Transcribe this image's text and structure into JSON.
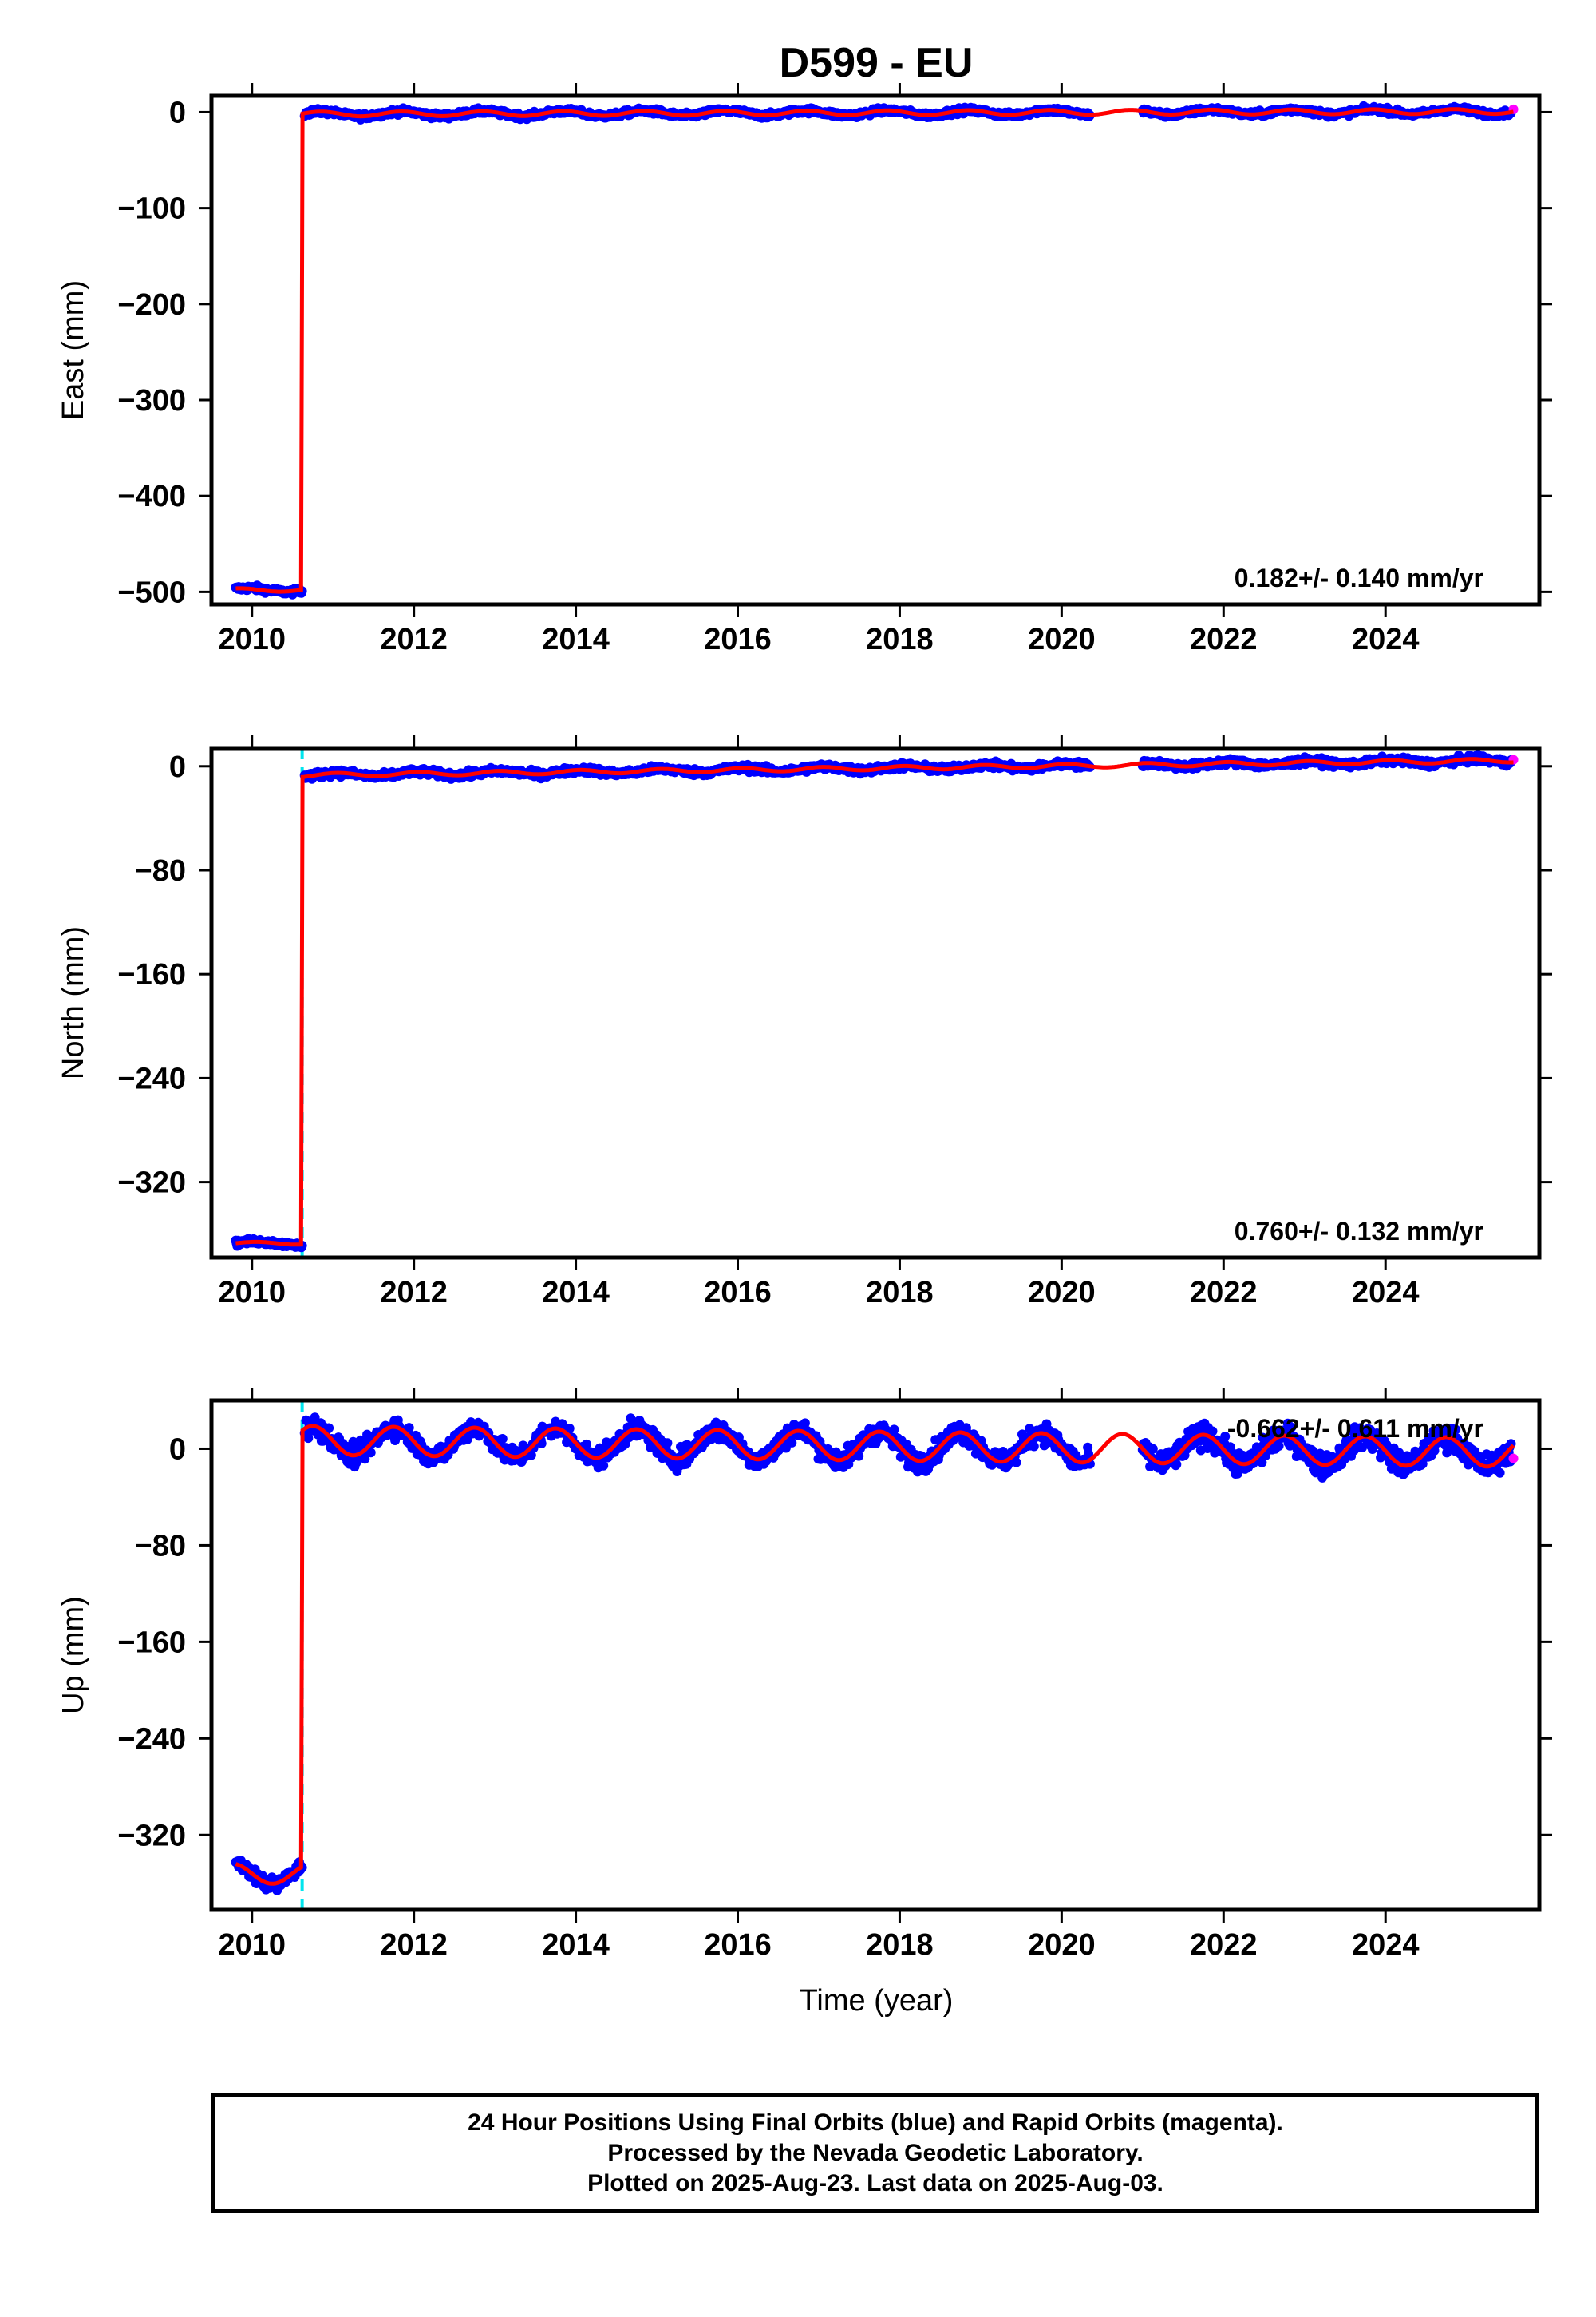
{
  "title": "D599 - EU",
  "xlabel": "Time (year)",
  "colors": {
    "final_orbits": "#0000ff",
    "rapid_orbits": "#ff00ff",
    "model": "#ff0000",
    "offset_marker": "#00e5ee",
    "axes": "#000000"
  },
  "footer": {
    "line1": "24 Hour Positions Using Final Orbits (blue) and Rapid Orbits (magenta).",
    "line2": "Processed by the Nevada Geodetic Laboratory.",
    "line3": "Plotted on 2025-Aug-23. Last data on 2025-Aug-03."
  },
  "chart_data": [
    {
      "type": "scatter",
      "ylabel": "East (mm)",
      "rate_label": "0.182+/- 0.140 mm/yr",
      "rate_position": "bottom-right",
      "xlim": [
        2009.5,
        2025.9
      ],
      "ylim": [
        -513,
        17
      ],
      "xticks": [
        "2010",
        "2012",
        "2014",
        "2016",
        "2018",
        "2020",
        "2022",
        "2024"
      ],
      "yticks": [
        0,
        -100,
        -200,
        -300,
        -400,
        -500
      ],
      "ytick_labels": [
        "0",
        "−100",
        "−200",
        "−300",
        "−400",
        "−500"
      ],
      "offset_epoch": null,
      "data_gap": [
        2020.35,
        2021.0
      ],
      "series": [
        {
          "name": "Final Orbits (blue)",
          "segments": [
            {
              "x_start": 2009.8,
              "x_end": 2010.62,
              "base": -498,
              "slope": 0,
              "annual": 2,
              "phase": 0.3,
              "noise": 2
            },
            {
              "x_start": 2010.65,
              "x_end": 2020.35,
              "base": -2,
              "slope": 0.182,
              "annual": 2.5,
              "phase": 0.4,
              "noise": 2
            },
            {
              "x_start": 2021.0,
              "x_end": 2025.55,
              "base": -2,
              "slope": 0.182,
              "annual": 2.5,
              "phase": 0.4,
              "noise": 2
            }
          ]
        },
        {
          "name": "Rapid Orbits (magenta)",
          "points": [
            [
              2025.58,
              3
            ]
          ]
        }
      ],
      "model": {
        "pre": -498,
        "post": -2,
        "slope": 0.182,
        "annual": 2.5,
        "phase": 0.4,
        "jump_epoch": 2010.62
      }
    },
    {
      "type": "scatter",
      "ylabel": "North (mm)",
      "rate_label": "0.760+/- 0.132 mm/yr",
      "rate_position": "bottom-right",
      "xlim": [
        2009.5,
        2025.9
      ],
      "ylim": [
        -378,
        14
      ],
      "xticks": [
        "2010",
        "2012",
        "2014",
        "2016",
        "2018",
        "2020",
        "2022",
        "2024"
      ],
      "yticks": [
        0,
        -80,
        -160,
        -240,
        -320
      ],
      "ytick_labels": [
        "0",
        "−80",
        "−160",
        "−240",
        "−320"
      ],
      "offset_epoch": 2010.62,
      "data_gap": [
        2020.35,
        2021.0
      ],
      "series": [
        {
          "name": "Final Orbits (blue)",
          "segments": [
            {
              "x_start": 2009.8,
              "x_end": 2010.62,
              "base": -367,
              "slope": 0,
              "annual": 1.5,
              "phase": 0.2,
              "noise": 1.5
            },
            {
              "x_start": 2010.65,
              "x_end": 2020.35,
              "base": -7,
              "slope": 0.76,
              "annual": 1.5,
              "phase": 0.2,
              "noise": 1.8
            },
            {
              "x_start": 2021.0,
              "x_end": 2025.55,
              "base": -7,
              "slope": 0.76,
              "annual": 1.5,
              "phase": 0.2,
              "noise": 1.8
            }
          ]
        },
        {
          "name": "Rapid Orbits (magenta)",
          "points": [
            [
              2025.58,
              5
            ]
          ]
        }
      ],
      "model": {
        "pre": -367,
        "post": -7,
        "slope": 0.76,
        "annual": 1.5,
        "phase": 0.2,
        "jump_epoch": 2010.62
      }
    },
    {
      "type": "scatter",
      "ylabel": "Up (mm)",
      "rate_label": "-0.662+/- 0.611 mm/yr",
      "rate_position": "top-right",
      "xlim": [
        2009.5,
        2025.9
      ],
      "ylim": [
        -382,
        40
      ],
      "xticks": [
        "2010",
        "2012",
        "2014",
        "2016",
        "2018",
        "2020",
        "2022",
        "2024"
      ],
      "yticks": [
        0,
        -80,
        -160,
        -240,
        -320
      ],
      "ytick_labels": [
        "0",
        "−80",
        "−160",
        "−240",
        "−320"
      ],
      "offset_epoch": 2010.62,
      "data_gap": [
        2020.35,
        2021.0
      ],
      "series": [
        {
          "name": "Final Orbits (blue)",
          "segments": [
            {
              "x_start": 2009.8,
              "x_end": 2010.62,
              "base": -352,
              "slope": 0,
              "annual": 9,
              "phase": 0.5,
              "noise": 4
            },
            {
              "x_start": 2010.65,
              "x_end": 2020.35,
              "base": 7,
              "slope": -0.662,
              "annual": 12,
              "phase": 0.5,
              "noise": 6
            },
            {
              "x_start": 2021.0,
              "x_end": 2025.55,
              "base": 7,
              "slope": -0.662,
              "annual": 12,
              "phase": 0.5,
              "noise": 7
            }
          ]
        },
        {
          "name": "Rapid Orbits (magenta)",
          "points": [
            [
              2025.58,
              -8
            ]
          ]
        }
      ],
      "model": {
        "pre": -352,
        "post": 7,
        "slope": -0.662,
        "annual": 12,
        "phase": 0.5,
        "jump_epoch": 2010.62
      }
    }
  ]
}
